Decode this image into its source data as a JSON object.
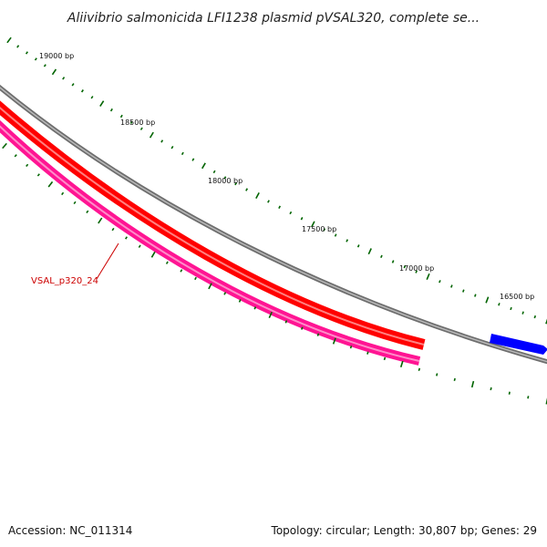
{
  "title": "Aliivibrio salmonicida LFI1238 plasmid pVSAL320, complete se...",
  "footer": {
    "accession": "Accession: NC_011314",
    "summary": "Topology: circular; Length: 30,807 bp; Genes: 29"
  },
  "ruler": {
    "labels": [
      "19000 bp",
      "18500 bp",
      "18000 bp",
      "17500 bp",
      "17000 bp",
      "16500 bp"
    ]
  },
  "genes": [
    {
      "label": "VSAL_p320_24",
      "color": "#ff0000",
      "strand": "reverse"
    },
    {
      "label": "",
      "color": "#ff1493",
      "strand": "reverse"
    },
    {
      "label": "",
      "color": "#0000ff",
      "strand": "forward"
    }
  ],
  "colors": {
    "backbone": "#888888",
    "ticks": "#006400",
    "label": "#cc0000"
  }
}
